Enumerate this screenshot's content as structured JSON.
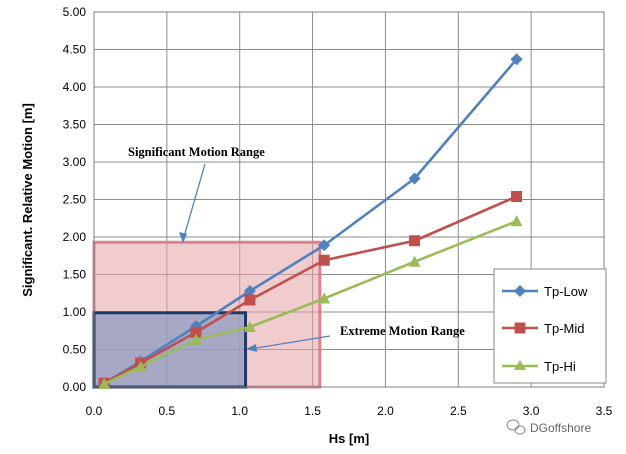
{
  "chart_data": {
    "type": "line",
    "title": "",
    "xlabel": "Hs [m]",
    "ylabel": "Significant. Relative Motion [m]",
    "xlim": [
      0,
      3.5
    ],
    "ylim": [
      0,
      5
    ],
    "xticks": [
      "0.0",
      "0.5",
      "1.0",
      "1.5",
      "2.0",
      "2.5",
      "3.0",
      "3.5"
    ],
    "yticks": [
      "0.00",
      "0.50",
      "1.00",
      "1.50",
      "2.00",
      "2.50",
      "3.00",
      "3.50",
      "4.00",
      "4.50",
      "5.00"
    ],
    "grid": true,
    "legend_position": "right",
    "series": [
      {
        "name": "Tp-Low",
        "color": "#4F81BD",
        "marker": "diamond",
        "x": [
          0.07,
          0.32,
          0.7,
          1.07,
          1.58,
          2.2,
          2.9
        ],
        "y": [
          0.05,
          0.34,
          0.81,
          1.28,
          1.89,
          2.78,
          4.37
        ]
      },
      {
        "name": "Tp-Mid",
        "color": "#C0504D",
        "marker": "square",
        "x": [
          0.07,
          0.32,
          0.7,
          1.07,
          1.58,
          2.2,
          2.9
        ],
        "y": [
          0.05,
          0.32,
          0.73,
          1.16,
          1.69,
          1.95,
          2.54
        ]
      },
      {
        "name": "Tp-Hi",
        "color": "#9BBB59",
        "marker": "triangle",
        "x": [
          0.07,
          0.32,
          0.7,
          1.07,
          1.58,
          2.2,
          2.9
        ],
        "y": [
          0.04,
          0.27,
          0.63,
          0.8,
          1.18,
          1.67,
          2.21
        ]
      }
    ],
    "regions": [
      {
        "label": "Significant Motion Range",
        "x0": 0.0,
        "x1": 1.55,
        "y0": 0.0,
        "y1": 1.93,
        "fill": "#E6A3A8",
        "stroke": "#D9848C"
      },
      {
        "label": "Extreme Motion Range",
        "x0": 0.0,
        "x1": 1.04,
        "y0": 0.0,
        "y1": 0.99,
        "fill": "#8C9CC2",
        "stroke": "#203864"
      }
    ],
    "annotations": [
      {
        "text": "Significant Motion Range",
        "points_to": "Significant Motion Range"
      },
      {
        "text": "Extreme Motion Range",
        "points_to": "Extreme Motion Range"
      }
    ]
  },
  "watermark": "DGoffshore"
}
